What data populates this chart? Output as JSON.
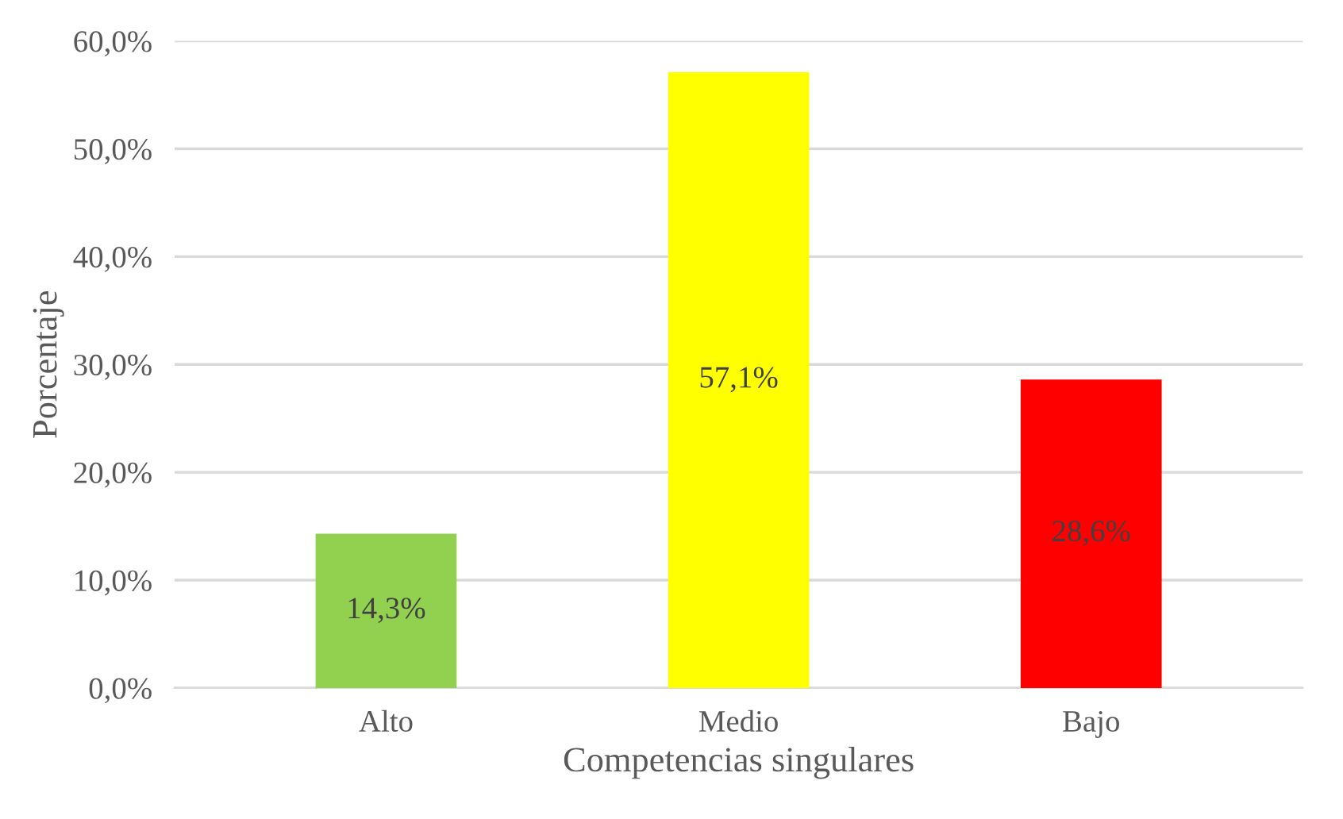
{
  "chart_data": {
    "type": "bar",
    "xlabel": "Competencias singulares",
    "ylabel": "Porcentaje",
    "categories": [
      "Alto",
      "Medio",
      "Bajo"
    ],
    "values": [
      14.3,
      57.1,
      28.6
    ],
    "colors": [
      "#92d050",
      "#ffff00",
      "#ff0000"
    ],
    "value_labels": [
      "14,3%",
      "57,1%",
      "28,6%"
    ],
    "ylim": [
      0,
      60
    ],
    "yticks": [
      {
        "value": 0,
        "label": "0,0%"
      },
      {
        "value": 10,
        "label": "10,0%"
      },
      {
        "value": 20,
        "label": "20,0%"
      },
      {
        "value": 30,
        "label": "30,0%"
      },
      {
        "value": 40,
        "label": "40,0%"
      },
      {
        "value": 50,
        "label": "50,0%"
      },
      {
        "value": 60,
        "label": "60,0%"
      }
    ],
    "grid": "y",
    "legend": false
  }
}
